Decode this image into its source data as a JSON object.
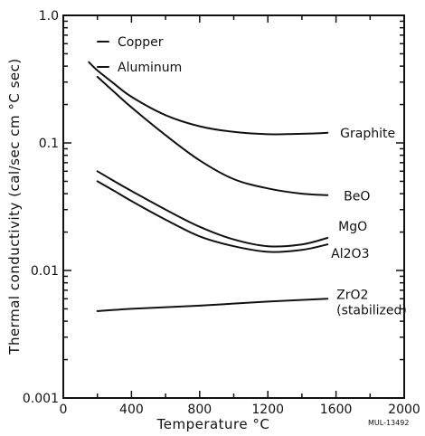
{
  "chart_data": {
    "type": "line",
    "xlabel": "Temperature °C",
    "ylabel": "Thermal conductivity (cal/sec cm °C sec)",
    "xlim": [
      0,
      2000
    ],
    "ylim": [
      0.001,
      1.0
    ],
    "yscale": "log",
    "grid": false,
    "x_ticks": [
      0,
      400,
      800,
      1200,
      1600,
      2000
    ],
    "y_ticks": [
      {
        "value": 1.0,
        "label": "1.0"
      },
      {
        "value": 0.1,
        "label": "0.1"
      },
      {
        "value": 0.01,
        "label": "0.01"
      },
      {
        "value": 0.001,
        "label": "0.001"
      }
    ],
    "legend_labels": [
      "Copper",
      "Aluminum"
    ],
    "note": "MUL-13492",
    "series": [
      {
        "name": "Graphite",
        "points": [
          [
            150,
            0.43
          ],
          [
            200,
            0.37
          ],
          [
            300,
            0.29
          ],
          [
            400,
            0.23
          ],
          [
            600,
            0.165
          ],
          [
            800,
            0.135
          ],
          [
            1000,
            0.122
          ],
          [
            1200,
            0.117
          ],
          [
            1400,
            0.118
          ],
          [
            1550,
            0.12
          ]
        ],
        "label_lines": [
          "Graphite"
        ]
      },
      {
        "name": "BeO",
        "points": [
          [
            200,
            0.33
          ],
          [
            300,
            0.25
          ],
          [
            400,
            0.19
          ],
          [
            600,
            0.115
          ],
          [
            800,
            0.073
          ],
          [
            1000,
            0.052
          ],
          [
            1200,
            0.044
          ],
          [
            1400,
            0.04
          ],
          [
            1550,
            0.039
          ]
        ],
        "label_lines": [
          "BeO"
        ]
      },
      {
        "name": "MgO",
        "points": [
          [
            200,
            0.06
          ],
          [
            300,
            0.05
          ],
          [
            400,
            0.042
          ],
          [
            600,
            0.03
          ],
          [
            800,
            0.022
          ],
          [
            1000,
            0.0175
          ],
          [
            1200,
            0.0155
          ],
          [
            1400,
            0.016
          ],
          [
            1550,
            0.018
          ]
        ],
        "label_lines": [
          "MgO"
        ]
      },
      {
        "name": "Al2O3",
        "points": [
          [
            200,
            0.05
          ],
          [
            300,
            0.042
          ],
          [
            400,
            0.035
          ],
          [
            600,
            0.025
          ],
          [
            800,
            0.0185
          ],
          [
            1000,
            0.0155
          ],
          [
            1200,
            0.014
          ],
          [
            1400,
            0.0145
          ],
          [
            1550,
            0.016
          ]
        ],
        "label_lines": [
          "Al2O3"
        ]
      },
      {
        "name": "ZrO2 (stabilized)",
        "points": [
          [
            200,
            0.0048
          ],
          [
            400,
            0.005
          ],
          [
            800,
            0.0053
          ],
          [
            1200,
            0.0057
          ],
          [
            1550,
            0.006
          ]
        ],
        "label_lines": [
          "ZrO2",
          "(stabilized)"
        ]
      }
    ]
  }
}
